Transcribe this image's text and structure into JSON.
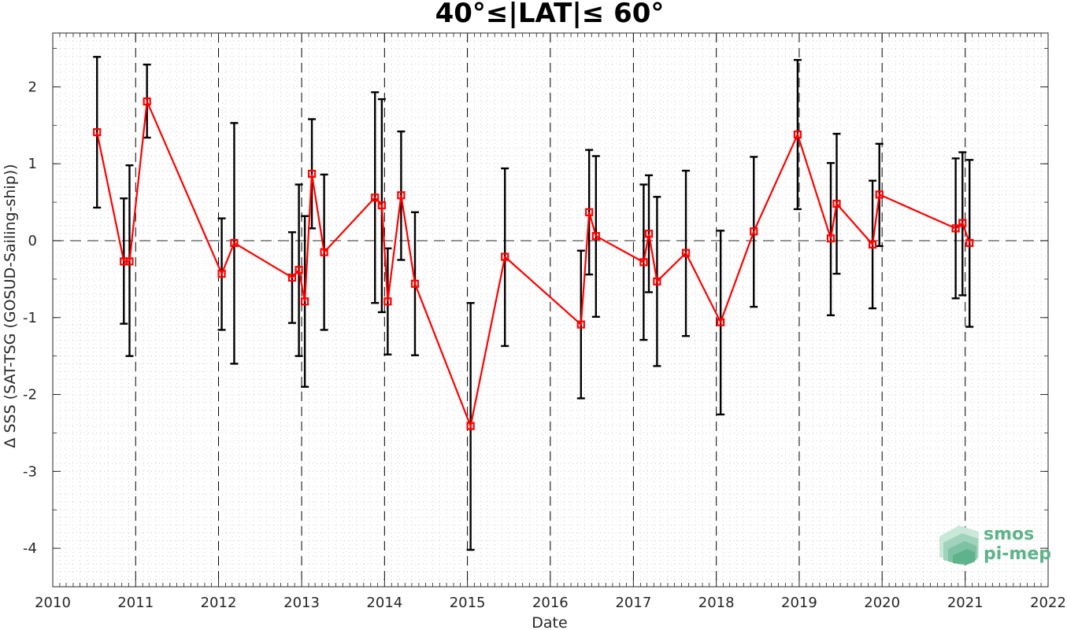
{
  "chart_data": {
    "type": "line",
    "title": "40°≤|LAT|≤ 60°",
    "xlabel": "Date",
    "ylabel": "Δ SSS (SAT-TSG (GOSUD-Sailing-ship))",
    "xlim": [
      "2010-01-01",
      "2022-01-01"
    ],
    "ylim": [
      -4.5,
      2.7
    ],
    "x_ticks": [
      "2010",
      "2011",
      "2012",
      "2013",
      "2014",
      "2015",
      "2016",
      "2017",
      "2018",
      "2019",
      "2020",
      "2021",
      "2022"
    ],
    "y_ticks": [
      "-4",
      "-3",
      "-2",
      "-1",
      "0",
      "1",
      "2"
    ],
    "grid": "minor dotted",
    "year_separators": "dashed vertical lines at each year boundary",
    "zero_line": "dashed horizontal line at 0",
    "series_color": "#ff0000",
    "errorbar_color": "#000000",
    "points": [
      {
        "x": "2010-07-15",
        "y": 1.41,
        "low": 0.43,
        "high": 2.39
      },
      {
        "x": "2010-11-10",
        "y": -0.27,
        "low": -1.08,
        "high": 0.55
      },
      {
        "x": "2010-12-05",
        "y": -0.27,
        "low": -1.5,
        "high": 0.98
      },
      {
        "x": "2011-02-20",
        "y": 1.81,
        "low": 1.34,
        "high": 2.29
      },
      {
        "x": "2012-01-15",
        "y": -0.43,
        "low": -1.16,
        "high": 0.29
      },
      {
        "x": "2012-03-10",
        "y": -0.03,
        "low": -1.6,
        "high": 1.53
      },
      {
        "x": "2012-11-20",
        "y": -0.48,
        "low": -1.07,
        "high": 0.11
      },
      {
        "x": "2012-12-20",
        "y": -0.38,
        "low": -1.5,
        "high": 0.73
      },
      {
        "x": "2013-01-15",
        "y": -0.79,
        "low": -1.9,
        "high": 0.32
      },
      {
        "x": "2013-02-15",
        "y": 0.87,
        "low": 0.16,
        "high": 1.58
      },
      {
        "x": "2013-04-10",
        "y": -0.15,
        "low": -1.16,
        "high": 0.86
      },
      {
        "x": "2013-11-20",
        "y": 0.56,
        "low": -0.81,
        "high": 1.93
      },
      {
        "x": "2013-12-20",
        "y": 0.46,
        "low": -0.93,
        "high": 1.84
      },
      {
        "x": "2014-01-15",
        "y": -0.79,
        "low": -1.48,
        "high": -0.1
      },
      {
        "x": "2014-03-15",
        "y": 0.59,
        "low": -0.25,
        "high": 1.42
      },
      {
        "x": "2014-05-15",
        "y": -0.56,
        "low": -1.49,
        "high": 0.37
      },
      {
        "x": "2015-01-15",
        "y": -2.41,
        "low": -4.02,
        "high": -0.81
      },
      {
        "x": "2015-06-15",
        "y": -0.21,
        "low": -1.37,
        "high": 0.94
      },
      {
        "x": "2016-05-15",
        "y": -1.09,
        "low": -2.05,
        "high": -0.13
      },
      {
        "x": "2016-06-20",
        "y": 0.37,
        "low": -0.44,
        "high": 1.18
      },
      {
        "x": "2016-07-20",
        "y": 0.06,
        "low": -0.99,
        "high": 1.1
      },
      {
        "x": "2017-02-15",
        "y": -0.28,
        "low": -1.29,
        "high": 0.73
      },
      {
        "x": "2017-03-10",
        "y": 0.09,
        "low": -0.67,
        "high": 0.85
      },
      {
        "x": "2017-04-15",
        "y": -0.53,
        "low": -1.63,
        "high": 0.57
      },
      {
        "x": "2017-08-20",
        "y": -0.16,
        "low": -1.24,
        "high": 0.91
      },
      {
        "x": "2018-01-20",
        "y": -1.06,
        "low": -2.26,
        "high": 0.13
      },
      {
        "x": "2018-06-15",
        "y": 0.12,
        "low": -0.86,
        "high": 1.09
      },
      {
        "x": "2018-12-25",
        "y": 1.38,
        "low": 0.41,
        "high": 2.35
      },
      {
        "x": "2019-05-20",
        "y": 0.03,
        "low": -0.97,
        "high": 1.01
      },
      {
        "x": "2019-06-15",
        "y": 0.48,
        "low": -0.43,
        "high": 1.39
      },
      {
        "x": "2019-11-20",
        "y": -0.05,
        "low": -0.88,
        "high": 0.78
      },
      {
        "x": "2019-12-20",
        "y": 0.6,
        "low": -0.07,
        "high": 1.26
      },
      {
        "x": "2020-11-20",
        "y": 0.16,
        "low": -0.75,
        "high": 1.07
      },
      {
        "x": "2020-12-20",
        "y": 0.23,
        "low": -0.71,
        "high": 1.15
      },
      {
        "x": "2021-01-20",
        "y": -0.03,
        "low": -1.12,
        "high": 1.05
      }
    ]
  },
  "logo": {
    "line1": "smos",
    "line2": "pi-mep",
    "color": "#5fb38c"
  }
}
